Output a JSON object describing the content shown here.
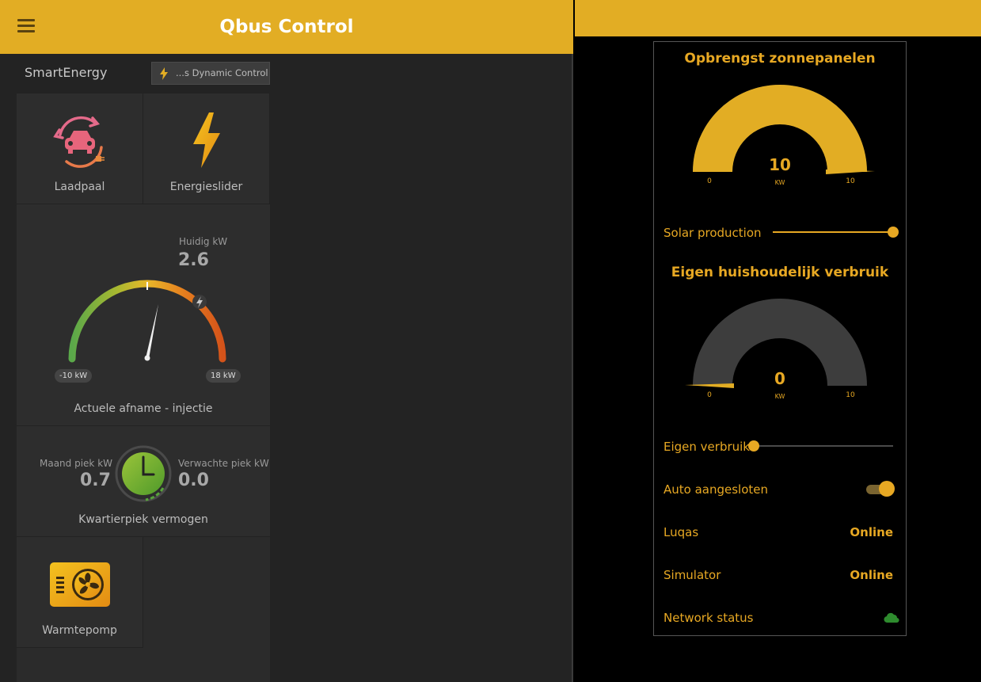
{
  "app": {
    "title": "Qbus Control"
  },
  "section": {
    "label": "SmartEnergy",
    "dynamic_button": "...s Dynamic Control"
  },
  "tiles": {
    "laadpaal": "Laadpaal",
    "energieslider": "Energieslider",
    "warmtepomp": "Warmtepomp"
  },
  "power_gauge": {
    "current_label": "Huidig kW",
    "current_value": "2.6",
    "min_label": "-10 kW",
    "max_label": "18 kW",
    "caption": "Actuele afname - injectie"
  },
  "peak": {
    "month_label": "Maand piek kW",
    "month_value": "0.7",
    "expected_label": "Verwachte piek kW",
    "expected_value": "0.0",
    "caption": "Kwartierpiek vermogen"
  },
  "solar_gauge": {
    "title": "Opbrengst zonnepanelen",
    "value": "10",
    "unit": "KW",
    "min": "0",
    "max": "10",
    "fill_fraction": 1.0,
    "color": "#e2ad24"
  },
  "household_gauge": {
    "title": "Eigen huishoudelijk verbruik",
    "value": "0",
    "unit": "KW",
    "min": "0",
    "max": "10",
    "fill_fraction": 0.0,
    "color": "#3d3d3d"
  },
  "controls": {
    "solar_label": "Solar production",
    "solar_level": 1.0,
    "eigen_label": "Eigen verbruik",
    "eigen_level": 0.0,
    "auto_label": "Auto aangesloten",
    "auto_on": true,
    "luqas_label": "Luqas",
    "luqas_status": "Online",
    "simulator_label": "Simulator",
    "simulator_status": "Online",
    "network_label": "Network status"
  },
  "colors": {
    "accent": "#e2ad24",
    "accent_text": "#e7a823",
    "network_ok": "#2e8b2e"
  }
}
